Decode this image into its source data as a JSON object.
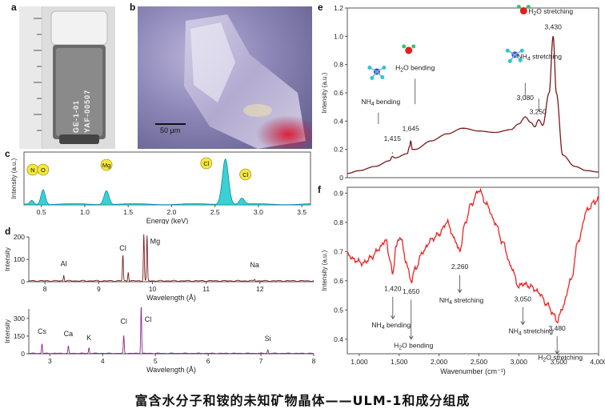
{
  "caption": "富含水分子和铵的未知矿物晶体——ULM-1和成分组成",
  "panels": {
    "a": {
      "letter": "a",
      "tube_text": [
        "GE-1-01",
        "YAF-00507"
      ]
    },
    "b": {
      "letter": "b",
      "scale_label": "50 μm"
    },
    "c": {
      "letter": "c"
    },
    "d": {
      "letter": "d"
    },
    "e": {
      "letter": "e"
    },
    "f": {
      "letter": "f"
    }
  },
  "colors": {
    "eds_fill": "#3ad0d4",
    "eds_line": "#0e8fa0",
    "xrf_top": "#7b1f1f",
    "xrf_bottom": "#8b2a8b",
    "ir_top": "#7a1a1a",
    "ir_bottom": "#ee2222",
    "element_marker": "#f5e83a"
  },
  "chart_data": [
    {
      "type": "area",
      "id": "c",
      "xlabel": "Energy (keV)",
      "ylabel": "Intensity (a.u.)",
      "xlim": [
        0.3,
        3.6
      ],
      "xticks": [
        0.5,
        1.0,
        1.5,
        2.0,
        2.5,
        3.0,
        3.5
      ],
      "tick_labels": [
        "0.5",
        "1.0",
        "1.5",
        "2.0",
        "2.5",
        "3.0",
        "3.5"
      ],
      "peaks": [
        {
          "x": 0.39,
          "h": 0.08,
          "w": 0.03
        },
        {
          "x": 0.52,
          "h": 0.3,
          "w": 0.035
        },
        {
          "x": 1.25,
          "h": 0.28,
          "w": 0.04
        },
        {
          "x": 2.62,
          "h": 0.92,
          "w": 0.05
        },
        {
          "x": 2.81,
          "h": 0.12,
          "w": 0.04
        }
      ],
      "markers": [
        {
          "label": "N",
          "x": 0.4
        },
        {
          "label": "O",
          "x": 0.52
        },
        {
          "label": "Mg",
          "x": 1.25
        },
        {
          "label": "Cl",
          "x": 2.4
        },
        {
          "label": "Cl",
          "x": 2.85
        }
      ]
    },
    {
      "type": "line",
      "id": "d-top",
      "xlabel": "Wavelength (Å)",
      "ylabel": "Intensity",
      "xlim": [
        7.7,
        13.0
      ],
      "ylim": [
        0,
        200
      ],
      "xticks": [
        8,
        9,
        10,
        11,
        12
      ],
      "yticks": [
        0,
        100,
        200
      ],
      "peaks": [
        {
          "x": 8.35,
          "h": 25
        },
        {
          "x": 9.45,
          "h": 115
        },
        {
          "x": 9.55,
          "h": 40
        },
        {
          "x": 9.84,
          "h": 210
        },
        {
          "x": 9.9,
          "h": 200
        },
        {
          "x": 11.9,
          "h": 8
        }
      ],
      "labels": [
        {
          "text": "Al",
          "x": 8.35,
          "y": 70
        },
        {
          "text": "Cl",
          "x": 9.45,
          "y": 140
        },
        {
          "text": "Mg",
          "x": 10.05,
          "y": 170
        },
        {
          "text": "Na",
          "x": 11.9,
          "y": 65
        }
      ]
    },
    {
      "type": "line",
      "id": "d-bottom",
      "xlabel": "Wavelength (Å)",
      "ylabel": "Intensity",
      "xlim": [
        2.6,
        8.0
      ],
      "ylim": [
        0,
        380
      ],
      "xticks": [
        3,
        4,
        5,
        6,
        7,
        8
      ],
      "yticks": [
        0,
        150,
        300
      ],
      "peaks": [
        {
          "x": 2.85,
          "h": 80
        },
        {
          "x": 3.35,
          "h": 60
        },
        {
          "x": 3.74,
          "h": 45
        },
        {
          "x": 4.4,
          "h": 150
        },
        {
          "x": 4.73,
          "h": 400
        },
        {
          "x": 7.13,
          "h": 30
        }
      ],
      "labels": [
        {
          "text": "Cs",
          "x": 2.85,
          "y": 170
        },
        {
          "text": "Ca",
          "x": 3.35,
          "y": 150
        },
        {
          "text": "K",
          "x": 3.74,
          "y": 115
        },
        {
          "text": "Cl",
          "x": 4.4,
          "y": 255
        },
        {
          "text": "Cl",
          "x": 4.86,
          "y": 270
        },
        {
          "text": "Si",
          "x": 7.13,
          "y": 110
        }
      ]
    },
    {
      "type": "line",
      "id": "e",
      "xlabel": "",
      "ylabel": "Intensity (a.u.)",
      "xlim": [
        850,
        4000
      ],
      "ylim": [
        0,
        1.2
      ],
      "yticks": [
        0,
        0.2,
        0.4,
        0.6,
        0.8,
        1.0,
        1.2
      ],
      "ytick_labels": [
        "0",
        "0.2",
        "0.4",
        "0.6",
        "0.8",
        "1.0",
        "1.2"
      ],
      "x": [
        850,
        1000,
        1200,
        1380,
        1415,
        1450,
        1600,
        1630,
        1645,
        1665,
        1700,
        1900,
        2100,
        2300,
        2500,
        2700,
        2900,
        3000,
        3080,
        3150,
        3200,
        3250,
        3300,
        3380,
        3430,
        3470,
        3550,
        3700,
        3850,
        4000
      ],
      "y": [
        0.03,
        0.05,
        0.08,
        0.12,
        0.15,
        0.14,
        0.17,
        0.22,
        0.26,
        0.2,
        0.2,
        0.26,
        0.31,
        0.35,
        0.33,
        0.32,
        0.34,
        0.38,
        0.43,
        0.39,
        0.36,
        0.41,
        0.37,
        0.6,
        1.0,
        0.6,
        0.16,
        0.08,
        0.05,
        0.04
      ],
      "annotations": [
        {
          "text": "1,415",
          "x": 1415,
          "y": 0.26
        },
        {
          "text": "1,645",
          "x": 1645,
          "y": 0.33
        },
        {
          "text": "3,080",
          "x": 3080,
          "y": 0.55
        },
        {
          "text": "3,250",
          "x": 3240,
          "y": 0.45
        },
        {
          "text": "3,430",
          "x": 3430,
          "y": 1.05
        },
        {
          "text": "NH4 bending",
          "x": 1270,
          "y": 0.52
        },
        {
          "text": "H2O bending",
          "x": 1700,
          "y": 0.76
        },
        {
          "text": "NH4 stretching",
          "x": 3260,
          "y": 0.84
        },
        {
          "text": "H2O stretching",
          "x": 3400,
          "y": 1.16
        }
      ]
    },
    {
      "type": "line",
      "id": "f",
      "xlabel": "Wavenumber (cm⁻¹)",
      "ylabel": "Intensity (a.u.)",
      "xlim": [
        850,
        4000
      ],
      "ylim": [
        0.35,
        0.92
      ],
      "xticks": [
        1000,
        1500,
        2000,
        2500,
        3000,
        3500,
        4000
      ],
      "xtick_labels": [
        "1,000",
        "1,500",
        "2,000",
        "2,500",
        "3,000",
        "3,500",
        "4,000"
      ],
      "yticks": [
        0.4,
        0.5,
        0.6,
        0.7,
        0.8,
        0.9
      ],
      "ytick_labels": [
        "0.4",
        "0.5",
        "0.6",
        "0.7",
        "0.8",
        "0.9"
      ],
      "x": [
        850,
        950,
        1050,
        1150,
        1250,
        1330,
        1380,
        1420,
        1460,
        1520,
        1580,
        1650,
        1700,
        1800,
        1900,
        2000,
        2100,
        2200,
        2260,
        2320,
        2400,
        2500,
        2600,
        2700,
        2800,
        2900,
        3000,
        3050,
        3150,
        3250,
        3350,
        3450,
        3480,
        3550,
        3650,
        3750,
        3850,
        3950,
        4000
      ],
      "y": [
        0.69,
        0.67,
        0.66,
        0.68,
        0.71,
        0.74,
        0.68,
        0.62,
        0.72,
        0.75,
        0.67,
        0.6,
        0.64,
        0.7,
        0.74,
        0.76,
        0.8,
        0.74,
        0.7,
        0.79,
        0.86,
        0.91,
        0.86,
        0.8,
        0.73,
        0.65,
        0.58,
        0.59,
        0.58,
        0.56,
        0.52,
        0.48,
        0.46,
        0.51,
        0.6,
        0.74,
        0.84,
        0.87,
        0.88
      ],
      "annotations": [
        {
          "text": "1,420",
          "x": 1420,
          "y": 0.565
        },
        {
          "text": "1,650",
          "x": 1650,
          "y": 0.555
        },
        {
          "text": "2,260",
          "x": 2260,
          "y": 0.64
        },
        {
          "text": "3,050",
          "x": 3050,
          "y": 0.53
        },
        {
          "text": "3,480",
          "x": 3480,
          "y": 0.43
        },
        {
          "text": "NH4 bending",
          "x": 1400,
          "y": 0.44
        },
        {
          "text": "H2O bending",
          "x": 1680,
          "y": 0.37
        },
        {
          "text": "NH4 stretching",
          "x": 2280,
          "y": 0.525
        },
        {
          "text": "NH4 stretching",
          "x": 3150,
          "y": 0.42
        },
        {
          "text": "H2O stretching",
          "x": 3520,
          "y": 0.33
        }
      ]
    }
  ]
}
